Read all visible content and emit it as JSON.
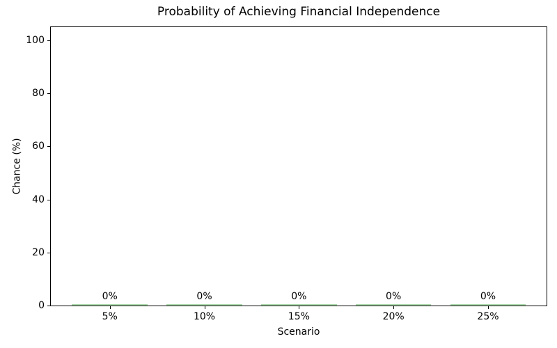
{
  "chart_data": {
    "type": "bar",
    "title": "Probability of Achieving Financial Independence",
    "xlabel": "Scenario",
    "ylabel": "Chance (%)",
    "categories": [
      "5%",
      "10%",
      "15%",
      "20%",
      "25%"
    ],
    "values": [
      0,
      0,
      0,
      0,
      0
    ],
    "bar_labels": [
      "0%",
      "0%",
      "0%",
      "0%",
      "0%"
    ],
    "yticks": [
      0,
      20,
      40,
      60,
      80,
      100
    ],
    "ylim": [
      0,
      105
    ],
    "grid": false,
    "legend": null,
    "colors": {
      "bar_fill": "#aedcae",
      "spine": "#000000",
      "text": "#000000",
      "background": "#ffffff"
    }
  }
}
